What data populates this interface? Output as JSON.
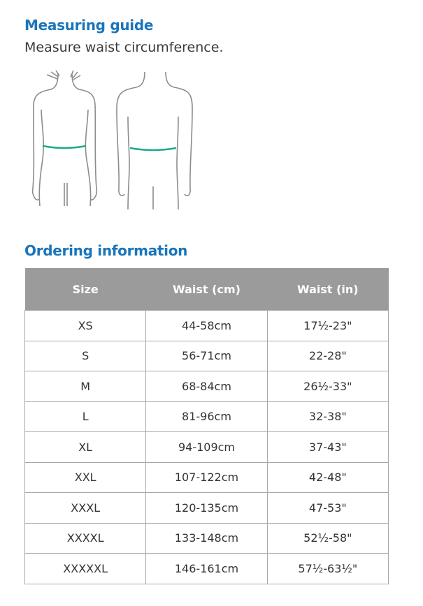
{
  "measuring": {
    "title": "Measuring guide",
    "subtitle": "Measure waist circumference."
  },
  "ordering": {
    "title": "Ordering information",
    "columns": [
      "Size",
      "Waist (cm)",
      "Waist (in)"
    ],
    "rows": [
      [
        "XS",
        "44-58cm",
        "17½-23\""
      ],
      [
        "S",
        "56-71cm",
        "22-28\""
      ],
      [
        "M",
        "68-84cm",
        "26½-33\""
      ],
      [
        "L",
        "81-96cm",
        "32-38\""
      ],
      [
        "XL",
        "94-109cm",
        "37-43\""
      ],
      [
        "XXL",
        "107-122cm",
        "42-48\""
      ],
      [
        "XXXL",
        "120-135cm",
        "47-53\""
      ],
      [
        "XXXXL",
        "133-148cm",
        "52½-58\""
      ],
      [
        "XXXXXL",
        "146-161cm",
        "57½-63½\""
      ]
    ]
  },
  "colors": {
    "heading": "#1a75bb",
    "waist_band": "#1aaa8c",
    "header_bg": "#9b9b9b"
  }
}
